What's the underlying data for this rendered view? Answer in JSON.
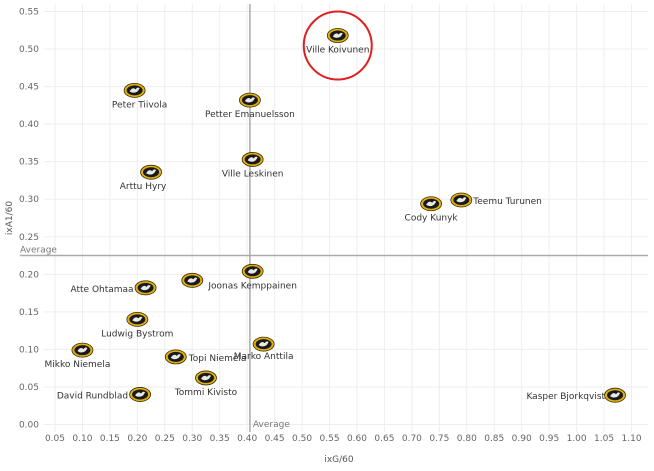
{
  "chart_data": {
    "type": "scatter",
    "xlabel": "ixG/60",
    "ylabel": "ixA1/60",
    "xlim": [
      0.03,
      1.13
    ],
    "ylim": [
      -0.01,
      0.56
    ],
    "x_ticks": [
      "0.05",
      "0.10",
      "0.15",
      "0.20",
      "0.25",
      "0.30",
      "0.35",
      "0.40",
      "0.45",
      "0.50",
      "0.55",
      "0.60",
      "0.65",
      "0.70",
      "0.75",
      "0.80",
      "0.85",
      "0.90",
      "0.95",
      "1.00",
      "1.05",
      "1.10"
    ],
    "y_ticks": [
      "0.00",
      "0.05",
      "0.10",
      "0.15",
      "0.20",
      "0.25",
      "0.30",
      "0.35",
      "0.40",
      "0.45",
      "0.50",
      "0.55"
    ],
    "grid": true,
    "reference_lines": {
      "x_average": 0.405,
      "y_average": 0.225,
      "x_label": "Average",
      "y_label": "Average"
    },
    "highlight": "Ville Koivunen",
    "points": [
      {
        "name": "Ville Koivunen",
        "x": 0.565,
        "y": 0.518
      },
      {
        "name": "Peter Tiivola",
        "x": 0.195,
        "y": 0.445
      },
      {
        "name": "Petter Emanuelsson",
        "x": 0.405,
        "y": 0.432
      },
      {
        "name": "Ville Leskinen",
        "x": 0.41,
        "y": 0.353
      },
      {
        "name": "Arttu Hyry",
        "x": 0.225,
        "y": 0.336
      },
      {
        "name": "Teemu Turunen",
        "x": 0.79,
        "y": 0.299
      },
      {
        "name": "Cody Kunyk",
        "x": 0.735,
        "y": 0.294
      },
      {
        "name": "Joonas Kemppainen",
        "x": 0.41,
        "y": 0.204
      },
      {
        "name": "Atte Ohtamaa",
        "x": 0.3,
        "y": 0.192
      },
      {
        "name": "Atte Ohtamaa",
        "x": 0.215,
        "y": 0.182,
        "label": true
      },
      {
        "name": "Ludwig Bystrom",
        "x": 0.2,
        "y": 0.14
      },
      {
        "name": "Marko Anttila",
        "x": 0.43,
        "y": 0.107
      },
      {
        "name": "Mikko Niemela",
        "x": 0.1,
        "y": 0.099
      },
      {
        "name": "Topi Niemela",
        "x": 0.27,
        "y": 0.09
      },
      {
        "name": "Tommi Kivisto",
        "x": 0.325,
        "y": 0.062
      },
      {
        "name": "David Rundblad",
        "x": 0.205,
        "y": 0.04
      },
      {
        "name": "Kasper Bjorkqvist",
        "x": 1.07,
        "y": 0.039
      }
    ]
  },
  "colors": {
    "marker_fill": "#1a1a1a",
    "marker_ring": "#e2b010",
    "highlight_ring": "#e02020",
    "grid": "#eeeeee",
    "reference": "#aaaaaa"
  }
}
